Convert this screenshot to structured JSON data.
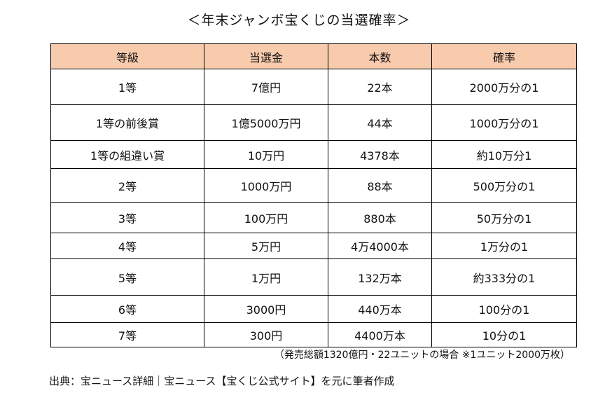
{
  "title": "＜年末ジャンボ宝くじの当選確率＞",
  "table": {
    "headers": [
      "等級",
      "当選金",
      "本数",
      "確率"
    ],
    "rows": [
      [
        "1等",
        "7億円",
        "22本",
        "2000万分の1"
      ],
      [
        "1等の前後賞",
        "1億5000万円",
        "44本",
        "1000万分の1"
      ],
      [
        "1等の組違い賞",
        "10万円",
        "4378本",
        "約10万分1"
      ],
      [
        "2等",
        "1000万円",
        "88本",
        "500万分の1"
      ],
      [
        "3等",
        "100万円",
        "880本",
        "50万分の1"
      ],
      [
        "4等",
        "5万円",
        "4万4000本",
        "1万分の1"
      ],
      [
        "5等",
        "1万円",
        "132万本",
        "約333分の1"
      ],
      [
        "6等",
        "3000円",
        "440万本",
        "100分の1"
      ],
      [
        "7等",
        "300円",
        "4400万本",
        "10分の1"
      ]
    ]
  },
  "note": "（発売総額1320億円・22ユニットの場合 ※1ユニット2000万枚）",
  "source": "出典：宝ニュース詳細｜宝ニュース【宝くじ公式サイト】を元に筆者作成",
  "colors": {
    "header_bg": "#f8cbad",
    "border": "#000000"
  }
}
